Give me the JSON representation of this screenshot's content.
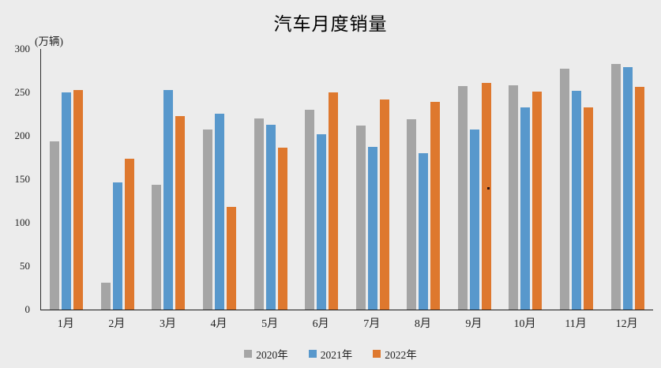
{
  "chart_data": {
    "type": "bar",
    "title": "汽车月度销量",
    "ylabel": "(万辆)",
    "xlabel": "",
    "categories": [
      "1月",
      "2月",
      "3月",
      "4月",
      "5月",
      "6月",
      "7月",
      "8月",
      "9月",
      "10月",
      "11月",
      "12月"
    ],
    "series": [
      {
        "name": "2020年",
        "color": "#A5A5A5",
        "values": [
          194,
          31,
          144,
          207,
          220,
          230,
          212,
          219,
          257,
          258,
          277,
          283
        ]
      },
      {
        "name": "2021年",
        "color": "#5898CC",
        "values": [
          250,
          146,
          253,
          225,
          213,
          202,
          187,
          180,
          207,
          233,
          252,
          279
        ]
      },
      {
        "name": "2022年",
        "color": "#DE782E",
        "values": [
          253,
          174,
          223,
          118,
          186,
          250,
          242,
          239,
          261,
          251,
          233,
          256
        ]
      }
    ],
    "ylim": [
      0,
      300
    ],
    "y_ticks": [
      0,
      50,
      100,
      150,
      200,
      250,
      300
    ],
    "grid": false,
    "legend_position": "bottom"
  },
  "colors": {
    "background": "#ECECEC",
    "axis_line": "#2e2e2e",
    "text": "#222222",
    "title_text": "#000000"
  }
}
